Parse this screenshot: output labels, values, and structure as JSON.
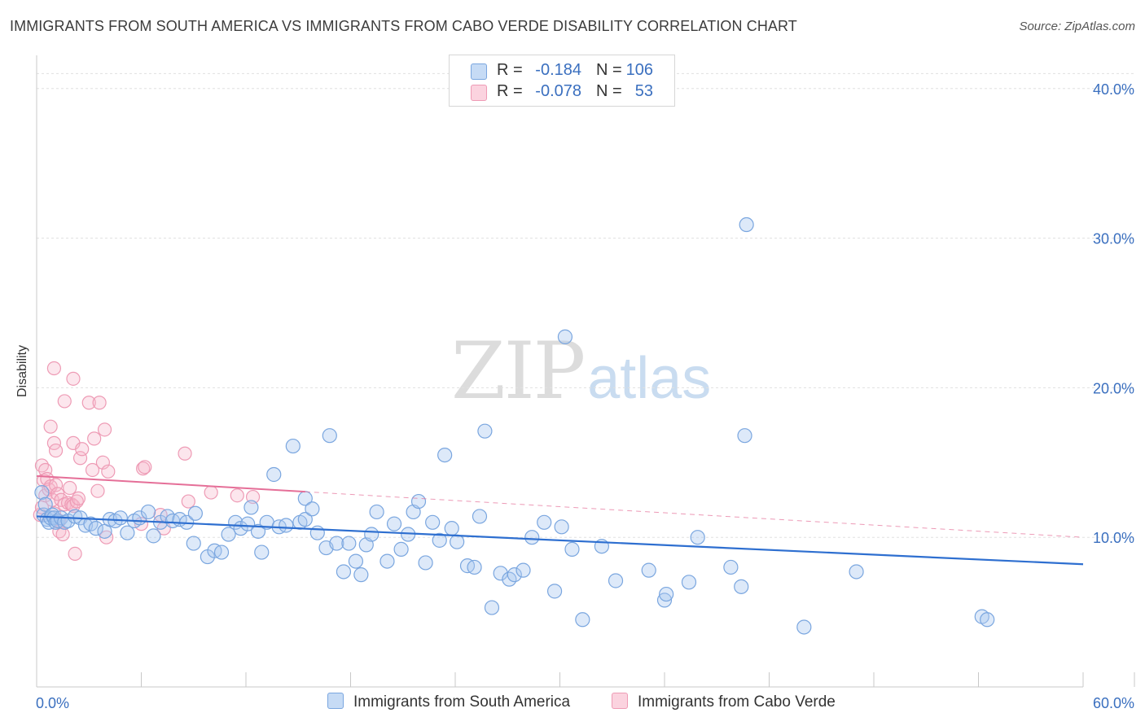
{
  "title": "IMMIGRANTS FROM SOUTH AMERICA VS IMMIGRANTS FROM CABO VERDE DISABILITY CORRELATION CHART",
  "source": "Source: ZipAtlas.com",
  "watermark": {
    "zip": "ZIP",
    "atlas": "atlas"
  },
  "legend": {
    "r_label": "R =",
    "n_label": "N =",
    "rows": [
      {
        "r": "-0.184",
        "n": "106",
        "color": "#a9c8f0"
      },
      {
        "r": "-0.078",
        "n": "53",
        "color": "#f5b8cb"
      }
    ]
  },
  "series_names": [
    "Immigrants from South America",
    "Immigrants from Cabo Verde"
  ],
  "colors": {
    "blue_fill": "#a9c8f0",
    "blue_line": "#2e6fd0",
    "pink_fill": "#f5b8cb",
    "pink_line": "#e56f98",
    "axis_text": "#3a6fbf"
  },
  "chart_data": {
    "type": "scatter",
    "title": "IMMIGRANTS FROM SOUTH AMERICA VS IMMIGRANTS FROM CABO VERDE DISABILITY CORRELATION CHART",
    "xlabel": "",
    "ylabel": "Disability",
    "xlim": [
      0,
      60
    ],
    "ylim": [
      0,
      42
    ],
    "x_tick_labels": [
      "0.0%",
      "60.0%"
    ],
    "y_ticks": [
      10,
      20,
      30,
      40
    ],
    "y_tick_labels": [
      "10.0%",
      "20.0%",
      "30.0%",
      "40.0%"
    ],
    "series": [
      {
        "name": "Immigrants from South America",
        "r": -0.184,
        "n": 106,
        "trend": {
          "x": [
            0,
            60
          ],
          "y": [
            11.4,
            8.2
          ],
          "dashed_after": null
        },
        "points": [
          [
            0.3,
            13.0
          ],
          [
            0.4,
            11.5
          ],
          [
            0.5,
            12.2
          ],
          [
            0.6,
            11.2
          ],
          [
            0.7,
            11.0
          ],
          [
            0.8,
            11.3
          ],
          [
            0.9,
            11.5
          ],
          [
            1.0,
            11.3
          ],
          [
            1.1,
            11.0
          ],
          [
            1.2,
            11.1
          ],
          [
            1.4,
            11.3
          ],
          [
            1.6,
            11.0
          ],
          [
            1.8,
            11.1
          ],
          [
            2.2,
            11.4
          ],
          [
            2.5,
            11.3
          ],
          [
            2.8,
            10.8
          ],
          [
            3.1,
            10.9
          ],
          [
            3.4,
            10.6
          ],
          [
            3.9,
            10.4
          ],
          [
            4.2,
            11.2
          ],
          [
            4.5,
            11.1
          ],
          [
            4.8,
            11.3
          ],
          [
            5.2,
            10.3
          ],
          [
            5.6,
            11.1
          ],
          [
            5.9,
            11.3
          ],
          [
            6.4,
            11.7
          ],
          [
            6.7,
            10.1
          ],
          [
            7.1,
            11.0
          ],
          [
            7.5,
            11.4
          ],
          [
            7.8,
            11.1
          ],
          [
            8.2,
            11.2
          ],
          [
            8.6,
            11.0
          ],
          [
            9.1,
            11.6
          ],
          [
            9.0,
            9.6
          ],
          [
            9.8,
            8.7
          ],
          [
            10.2,
            9.1
          ],
          [
            10.6,
            9.0
          ],
          [
            11.0,
            10.2
          ],
          [
            11.4,
            11.0
          ],
          [
            11.7,
            10.6
          ],
          [
            12.1,
            10.9
          ],
          [
            12.3,
            12.0
          ],
          [
            12.7,
            10.4
          ],
          [
            12.9,
            9.0
          ],
          [
            13.2,
            11.0
          ],
          [
            13.6,
            14.2
          ],
          [
            13.9,
            10.7
          ],
          [
            14.3,
            10.8
          ],
          [
            14.7,
            16.1
          ],
          [
            15.1,
            11.0
          ],
          [
            15.4,
            11.2
          ],
          [
            15.4,
            12.6
          ],
          [
            15.8,
            11.9
          ],
          [
            16.1,
            10.3
          ],
          [
            16.6,
            9.3
          ],
          [
            16.8,
            16.8
          ],
          [
            17.2,
            9.6
          ],
          [
            17.6,
            7.7
          ],
          [
            17.9,
            9.6
          ],
          [
            18.3,
            8.4
          ],
          [
            18.6,
            7.5
          ],
          [
            18.9,
            9.5
          ],
          [
            19.2,
            10.2
          ],
          [
            19.5,
            11.7
          ],
          [
            20.1,
            8.4
          ],
          [
            20.5,
            10.9
          ],
          [
            20.9,
            9.2
          ],
          [
            21.3,
            10.2
          ],
          [
            21.6,
            11.7
          ],
          [
            21.9,
            12.4
          ],
          [
            22.3,
            8.3
          ],
          [
            22.7,
            11.0
          ],
          [
            23.1,
            9.8
          ],
          [
            23.4,
            15.5
          ],
          [
            23.8,
            10.6
          ],
          [
            24.1,
            9.7
          ],
          [
            24.7,
            8.1
          ],
          [
            25.1,
            8.0
          ],
          [
            25.4,
            11.4
          ],
          [
            25.7,
            17.1
          ],
          [
            26.1,
            5.3
          ],
          [
            26.6,
            7.6
          ],
          [
            27.1,
            7.2
          ],
          [
            27.4,
            7.5
          ],
          [
            27.9,
            7.8
          ],
          [
            28.4,
            10.0
          ],
          [
            29.1,
            11.0
          ],
          [
            29.7,
            6.4
          ],
          [
            30.1,
            10.7
          ],
          [
            30.3,
            23.4
          ],
          [
            30.7,
            9.2
          ],
          [
            31.3,
            4.5
          ],
          [
            32.4,
            9.4
          ],
          [
            33.2,
            7.1
          ],
          [
            35.1,
            7.8
          ],
          [
            36.0,
            5.8
          ],
          [
            36.1,
            6.2
          ],
          [
            37.4,
            7.0
          ],
          [
            37.9,
            10.0
          ],
          [
            39.8,
            8.0
          ],
          [
            40.4,
            6.7
          ],
          [
            40.6,
            16.8
          ],
          [
            40.7,
            30.9
          ],
          [
            44.0,
            4.0
          ],
          [
            47.0,
            7.7
          ],
          [
            54.2,
            4.7
          ],
          [
            54.5,
            4.5
          ]
        ]
      },
      {
        "name": "Immigrants from Cabo Verde",
        "r": -0.078,
        "n": 53,
        "trend": {
          "x": [
            0,
            60
          ],
          "y": [
            14.1,
            10.0
          ],
          "solid_until_x": 15.4
        },
        "points": [
          [
            0.2,
            11.5
          ],
          [
            0.3,
            12.0
          ],
          [
            0.3,
            14.8
          ],
          [
            0.4,
            13.8
          ],
          [
            0.5,
            12.8
          ],
          [
            0.5,
            14.5
          ],
          [
            0.6,
            13.9
          ],
          [
            0.7,
            13.2
          ],
          [
            0.8,
            13.4
          ],
          [
            0.8,
            17.4
          ],
          [
            0.9,
            12.5
          ],
          [
            1.0,
            11.6
          ],
          [
            1.0,
            16.3
          ],
          [
            1.0,
            21.3
          ],
          [
            1.1,
            15.8
          ],
          [
            1.1,
            13.5
          ],
          [
            1.2,
            12.9
          ],
          [
            1.3,
            11.1
          ],
          [
            1.3,
            10.4
          ],
          [
            1.4,
            12.5
          ],
          [
            1.5,
            10.2
          ],
          [
            1.6,
            19.1
          ],
          [
            1.6,
            12.2
          ],
          [
            1.8,
            12.3
          ],
          [
            1.9,
            13.3
          ],
          [
            2.0,
            12.2
          ],
          [
            2.1,
            16.3
          ],
          [
            2.1,
            12.1
          ],
          [
            2.1,
            20.6
          ],
          [
            2.2,
            8.9
          ],
          [
            2.3,
            12.4
          ],
          [
            2.4,
            12.6
          ],
          [
            2.5,
            15.3
          ],
          [
            2.6,
            15.9
          ],
          [
            3.0,
            19.0
          ],
          [
            3.2,
            14.5
          ],
          [
            3.3,
            16.6
          ],
          [
            3.5,
            13.1
          ],
          [
            3.6,
            19.0
          ],
          [
            3.8,
            15.0
          ],
          [
            3.9,
            17.2
          ],
          [
            4.0,
            10.0
          ],
          [
            4.1,
            14.4
          ],
          [
            6.0,
            10.9
          ],
          [
            6.1,
            14.6
          ],
          [
            6.2,
            14.7
          ],
          [
            7.1,
            11.5
          ],
          [
            7.3,
            10.6
          ],
          [
            8.5,
            15.6
          ],
          [
            8.7,
            12.4
          ],
          [
            10.0,
            13.0
          ],
          [
            11.5,
            12.8
          ],
          [
            12.4,
            12.7
          ]
        ]
      }
    ]
  }
}
